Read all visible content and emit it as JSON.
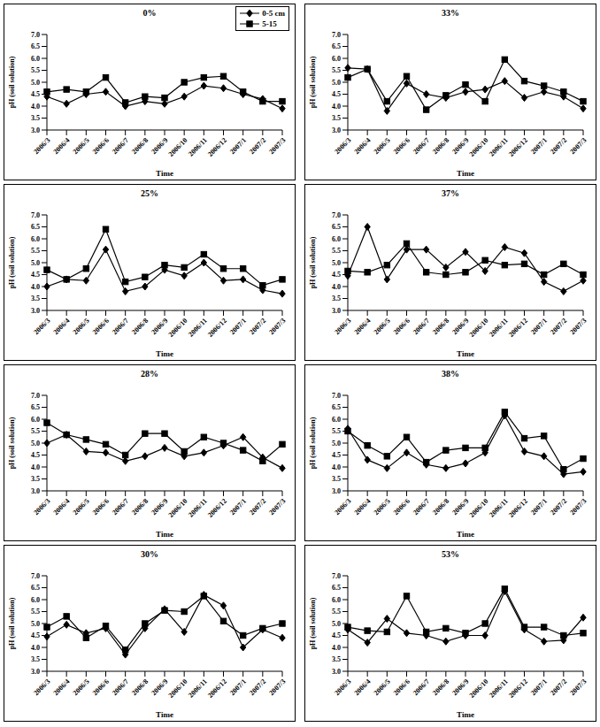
{
  "chart_data": [
    {
      "type": "line",
      "title": "0%",
      "x_label": "Time",
      "y_label": "pH (soil solution)",
      "legend": "upper right",
      "categories": [
        "2006/3",
        "2006/4",
        "2006/5",
        "2006/6",
        "2006/7",
        "2006/8",
        "2006/9",
        "2006/10",
        "2006/11",
        "2006/12",
        "2007/1",
        "2007/2",
        "2007/3"
      ],
      "ylim": [
        3,
        7
      ],
      "yticks": [
        {
          "value": 3,
          "label": "3.0"
        },
        {
          "value": 3.5,
          "label": "3.5"
        },
        {
          "value": 4,
          "label": "4.0"
        },
        {
          "value": 4.5,
          "label": "4.5"
        },
        {
          "value": 5,
          "label": "5.0"
        },
        {
          "value": 5.5,
          "label": "5.5"
        },
        {
          "value": 6,
          "label": "6.0"
        },
        {
          "value": 6.5,
          "label": "6.5"
        },
        {
          "value": 7,
          "label": "7.0"
        }
      ],
      "grid": false,
      "series": [
        {
          "name": "0-5 cm",
          "color": "#000000",
          "marker": "diamond",
          "line_style": "solid",
          "values": [
            4.4,
            4.1,
            4.5,
            4.6,
            4.0,
            4.2,
            4.1,
            4.4,
            4.85,
            4.75,
            4.5,
            4.3,
            3.9
          ]
        },
        {
          "name": "5-15",
          "color": "#000000",
          "marker": "square",
          "line_style": "solid",
          "values": [
            4.6,
            4.7,
            4.6,
            5.2,
            4.15,
            4.4,
            4.35,
            5.0,
            5.2,
            5.25,
            4.6,
            4.2,
            4.2
          ]
        }
      ]
    },
    {
      "type": "line",
      "title": "33%",
      "x_label": "Time",
      "y_label": "pH (soil solution)",
      "categories": [
        "2006/3",
        "2006/4",
        "2006/5",
        "2006/6",
        "2006/7",
        "2006/8",
        "2006/9",
        "2006/10",
        "2006/11",
        "2006/12",
        "2007/1",
        "2007/2",
        "2007/3"
      ],
      "ylim": [
        3,
        7
      ],
      "yticks": [
        {
          "value": 3,
          "label": "3.0"
        },
        {
          "value": 3.5,
          "label": "3.5"
        },
        {
          "value": 4,
          "label": "4.0"
        },
        {
          "value": 4.5,
          "label": "4.5"
        },
        {
          "value": 5,
          "label": "5.0"
        },
        {
          "value": 5.5,
          "label": "5.5"
        },
        {
          "value": 6,
          "label": "6.0"
        },
        {
          "value": 6.5,
          "label": "6.5"
        },
        {
          "value": 7,
          "label": "7.0"
        }
      ],
      "grid": false,
      "series": [
        {
          "name": "0-5 cm",
          "color": "#000000",
          "marker": "diamond",
          "line_style": "solid",
          "values": [
            5.6,
            5.55,
            3.8,
            4.95,
            4.5,
            4.35,
            4.6,
            4.7,
            5.05,
            4.35,
            4.6,
            4.4,
            3.9
          ]
        },
        {
          "name": "5-15",
          "color": "#000000",
          "marker": "square",
          "line_style": "solid",
          "values": [
            5.2,
            5.55,
            4.2,
            5.25,
            3.85,
            4.45,
            4.9,
            4.2,
            5.95,
            5.05,
            4.85,
            4.6,
            4.2
          ]
        }
      ]
    },
    {
      "type": "line",
      "title": "25%",
      "x_label": "Time",
      "y_label": "pH (soil solution)",
      "categories": [
        "2006/3",
        "2006/4",
        "2006/5",
        "2006/6",
        "2006/7",
        "2006/8",
        "2006/9",
        "2006/10",
        "2006/11",
        "2006/12",
        "2007/1",
        "2007/2",
        "2007/3"
      ],
      "ylim": [
        3,
        7
      ],
      "yticks": [
        {
          "value": 3,
          "label": "3.0"
        },
        {
          "value": 3.5,
          "label": "3.5"
        },
        {
          "value": 4,
          "label": "4.0"
        },
        {
          "value": 4.5,
          "label": "4.5"
        },
        {
          "value": 5,
          "label": "5.0"
        },
        {
          "value": 5.5,
          "label": "5.5"
        },
        {
          "value": 6,
          "label": "6.0"
        },
        {
          "value": 6.5,
          "label": "6.5"
        },
        {
          "value": 7,
          "label": "7.0"
        }
      ],
      "grid": false,
      "series": [
        {
          "name": "0-5 cm",
          "color": "#000000",
          "marker": "diamond",
          "line_style": "solid",
          "values": [
            4.0,
            4.3,
            4.25,
            5.55,
            3.8,
            4.0,
            4.7,
            4.45,
            5.0,
            4.25,
            4.3,
            3.85,
            3.7
          ]
        },
        {
          "name": "5-15",
          "color": "#000000",
          "marker": "square",
          "line_style": "solid",
          "values": [
            4.7,
            4.3,
            4.75,
            6.4,
            4.2,
            4.4,
            4.9,
            4.8,
            5.35,
            4.75,
            4.75,
            4.05,
            4.3
          ]
        }
      ]
    },
    {
      "type": "line",
      "title": "37%",
      "x_label": "Time",
      "y_label": "pH (soil solution)",
      "categories": [
        "2006/3",
        "2006/4",
        "2006/5",
        "2006/6",
        "2006/7",
        "2006/8",
        "2006/9",
        "2006/10",
        "2006/11",
        "2006/12",
        "2007/1",
        "2007/2",
        "2007/3"
      ],
      "ylim": [
        3,
        7
      ],
      "yticks": [
        {
          "value": 3,
          "label": "3.0"
        },
        {
          "value": 3.5,
          "label": "3.5"
        },
        {
          "value": 4,
          "label": "4.0"
        },
        {
          "value": 4.5,
          "label": "4.5"
        },
        {
          "value": 5,
          "label": "5.0"
        },
        {
          "value": 5.5,
          "label": "5.5"
        },
        {
          "value": 6,
          "label": "6.0"
        },
        {
          "value": 6.5,
          "label": "6.5"
        },
        {
          "value": 7,
          "label": "7.0"
        }
      ],
      "grid": false,
      "series": [
        {
          "name": "0-5 cm",
          "color": "#000000",
          "marker": "diamond",
          "line_style": "solid",
          "values": [
            4.45,
            6.5,
            4.3,
            5.55,
            5.55,
            4.8,
            5.45,
            4.65,
            5.65,
            5.4,
            4.2,
            3.8,
            4.25
          ]
        },
        {
          "name": "5-15",
          "color": "#000000",
          "marker": "square",
          "line_style": "solid",
          "values": [
            4.65,
            4.6,
            4.9,
            5.8,
            4.6,
            4.5,
            4.6,
            5.1,
            4.9,
            4.95,
            4.5,
            4.95,
            4.5
          ]
        }
      ]
    },
    {
      "type": "line",
      "title": "28%",
      "x_label": "Time",
      "y_label": "pH (soil solution)",
      "categories": [
        "2006/3",
        "2006/4",
        "2006/5",
        "2006/6",
        "2006/7",
        "2006/8",
        "2006/9",
        "2006/10",
        "2006/11",
        "2006/12",
        "2007/1",
        "2007/2",
        "2007/3"
      ],
      "ylim": [
        3,
        7
      ],
      "yticks": [
        {
          "value": 3,
          "label": "3.0"
        },
        {
          "value": 3.5,
          "label": "3.5"
        },
        {
          "value": 4,
          "label": "4.0"
        },
        {
          "value": 4.5,
          "label": "4.5"
        },
        {
          "value": 5,
          "label": "5.0"
        },
        {
          "value": 5.5,
          "label": "5.5"
        },
        {
          "value": 6,
          "label": "6.0"
        },
        {
          "value": 6.5,
          "label": "6.5"
        },
        {
          "value": 7,
          "label": "7.0"
        }
      ],
      "grid": false,
      "series": [
        {
          "name": "0-5 cm",
          "color": "#000000",
          "marker": "diamond",
          "line_style": "solid",
          "values": [
            5.0,
            5.35,
            4.65,
            4.6,
            4.25,
            4.45,
            4.8,
            4.45,
            4.6,
            4.9,
            5.25,
            4.4,
            3.95
          ]
        },
        {
          "name": "5-15",
          "color": "#000000",
          "marker": "square",
          "line_style": "solid",
          "values": [
            5.85,
            5.35,
            5.15,
            4.95,
            4.5,
            5.4,
            5.4,
            4.65,
            5.25,
            5.0,
            4.7,
            4.25,
            4.95
          ]
        }
      ]
    },
    {
      "type": "line",
      "title": "38%",
      "x_label": "Time",
      "y_label": "pH (soil solution)",
      "categories": [
        "2006/3",
        "2006/4",
        "2006/5",
        "2006/6",
        "2006/7",
        "2006/8",
        "2006/9",
        "2006/10",
        "2006/11",
        "2006/12",
        "2007/1",
        "2007/2",
        "2007/3"
      ],
      "ylim": [
        3,
        7
      ],
      "yticks": [
        {
          "value": 3,
          "label": "3.0"
        },
        {
          "value": 3.5,
          "label": "3.5"
        },
        {
          "value": 4,
          "label": "4.0"
        },
        {
          "value": 4.5,
          "label": "4.5"
        },
        {
          "value": 5,
          "label": "5.0"
        },
        {
          "value": 5.5,
          "label": "5.5"
        },
        {
          "value": 6,
          "label": "6.0"
        },
        {
          "value": 6.5,
          "label": "6.5"
        },
        {
          "value": 7,
          "label": "7.0"
        }
      ],
      "grid": false,
      "series": [
        {
          "name": "0-5 cm",
          "color": "#000000",
          "marker": "diamond",
          "line_style": "solid",
          "values": [
            5.6,
            4.3,
            3.95,
            4.6,
            4.1,
            3.95,
            4.15,
            4.6,
            6.15,
            4.65,
            4.45,
            3.7,
            3.8
          ]
        },
        {
          "name": "5-15",
          "color": "#000000",
          "marker": "square",
          "line_style": "solid",
          "values": [
            5.5,
            4.9,
            4.45,
            5.25,
            4.2,
            4.7,
            4.8,
            4.8,
            6.3,
            5.2,
            5.3,
            3.9,
            4.35
          ]
        }
      ]
    },
    {
      "type": "line",
      "title": "30%",
      "x_label": "Time",
      "y_label": "pH (soil solution)",
      "categories": [
        "2006/3",
        "2006/4",
        "2006/5",
        "2006/6",
        "2006/7",
        "2006/8",
        "2006/9",
        "2006/10",
        "2006/11",
        "2006/12",
        "2007/1",
        "2007/2",
        "2007/3"
      ],
      "ylim": [
        3,
        7
      ],
      "yticks": [
        {
          "value": 3,
          "label": "3.0"
        },
        {
          "value": 3.5,
          "label": "3.5"
        },
        {
          "value": 4,
          "label": "4.0"
        },
        {
          "value": 4.5,
          "label": "4.5"
        },
        {
          "value": 5,
          "label": "5.0"
        },
        {
          "value": 5.5,
          "label": "5.5"
        },
        {
          "value": 6,
          "label": "6.0"
        },
        {
          "value": 6.5,
          "label": "6.5"
        },
        {
          "value": 7,
          "label": "7.0"
        }
      ],
      "grid": false,
      "series": [
        {
          "name": "0-5 cm",
          "color": "#000000",
          "marker": "diamond",
          "line_style": "solid",
          "values": [
            4.45,
            4.95,
            4.6,
            4.8,
            3.7,
            4.8,
            5.6,
            4.65,
            6.2,
            5.75,
            4.0,
            4.75,
            4.4
          ]
        },
        {
          "name": "5-15",
          "color": "#000000",
          "marker": "square",
          "line_style": "solid",
          "values": [
            4.85,
            5.3,
            4.4,
            4.9,
            3.9,
            5.0,
            5.55,
            5.5,
            6.15,
            5.1,
            4.5,
            4.8,
            5.0
          ]
        }
      ]
    },
    {
      "type": "line",
      "title": "53%",
      "x_label": "Time",
      "y_label": "pH (soil solution)",
      "categories": [
        "2006/3",
        "2006/4",
        "2006/5",
        "2006/6",
        "2006/7",
        "2006/8",
        "2006/9",
        "2006/10",
        "2006/11",
        "2006/12",
        "2007/1",
        "2007/2",
        "2007/3"
      ],
      "ylim": [
        3,
        7
      ],
      "yticks": [
        {
          "value": 3,
          "label": "3.0"
        },
        {
          "value": 3.5,
          "label": "3.5"
        },
        {
          "value": 4,
          "label": "4.0"
        },
        {
          "value": 4.5,
          "label": "4.5"
        },
        {
          "value": 5,
          "label": "5.0"
        },
        {
          "value": 5.5,
          "label": "5.5"
        },
        {
          "value": 6,
          "label": "6.0"
        },
        {
          "value": 6.5,
          "label": "6.5"
        },
        {
          "value": 7,
          "label": "7.0"
        }
      ],
      "grid": false,
      "series": [
        {
          "name": "0-5 cm",
          "color": "#000000",
          "marker": "diamond",
          "line_style": "solid",
          "values": [
            4.75,
            4.2,
            5.2,
            4.6,
            4.5,
            4.25,
            4.5,
            4.5,
            6.35,
            4.75,
            4.25,
            4.3,
            5.25
          ]
        },
        {
          "name": "5-15",
          "color": "#000000",
          "marker": "square",
          "line_style": "solid",
          "values": [
            4.85,
            4.7,
            4.65,
            6.15,
            4.65,
            4.8,
            4.6,
            5.0,
            6.45,
            4.85,
            4.85,
            4.5,
            4.6
          ]
        }
      ]
    }
  ]
}
